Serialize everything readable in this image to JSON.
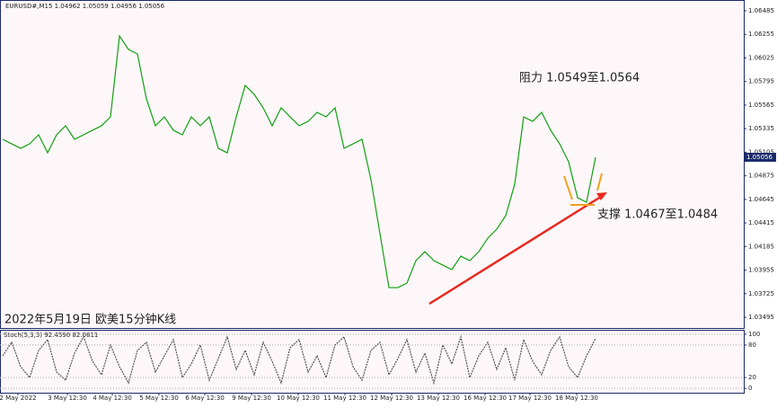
{
  "chart_data": [
    {
      "type": "line",
      "title": "EURUSD#,M15 1.04962 1.05059 1.04956 1.05056",
      "annotations": [
        "阻力 1.0549至1.0564",
        "支撑 1.0467至1.0484",
        "2022年5月19日 欧美15分钟K线"
      ],
      "color": "#10a010",
      "values": [
        1.05231,
        1.05187,
        1.05143,
        1.05187,
        1.05275,
        1.05099,
        1.05275,
        1.05363,
        1.05231,
        1.05275,
        1.05319,
        1.05363,
        1.0545,
        1.06239,
        1.06108,
        1.06064,
        1.05626,
        1.05363,
        1.0545,
        1.05319,
        1.05275,
        1.0545,
        1.05363,
        1.0545,
        1.05143,
        1.05099,
        1.0545,
        1.05757,
        1.05669,
        1.05538,
        1.05363,
        1.05538,
        1.0545,
        1.05363,
        1.05406,
        1.05494,
        1.0545,
        1.05538,
        1.05143,
        1.05187,
        1.05231,
        1.04836,
        1.0431,
        1.03784,
        1.03784,
        1.03828,
        1.04047,
        1.04135,
        1.04047,
        1.04003,
        1.0396,
        1.04091,
        1.04047,
        1.04135,
        1.04266,
        1.04354,
        1.04486,
        1.04793,
        1.0545,
        1.05406,
        1.05494,
        1.05319,
        1.05187,
        1.05012,
        1.04661,
        1.04617,
        1.05056
      ],
      "last_value": 1.05056,
      "ylim": [
        1.0339,
        1.0659
      ],
      "yticks": [
        1.06485,
        1.06255,
        1.06025,
        1.05795,
        1.05565,
        1.05335,
        1.05105,
        1.04875,
        1.04645,
        1.04415,
        1.04185,
        1.03955,
        1.03725,
        1.03495
      ],
      "xlim": [
        -0.3,
        82.5
      ],
      "xticks": [
        {
          "value": 1.7,
          "label": "2 May 2022"
        },
        {
          "value": 7.2,
          "label": "3 May 12:30"
        },
        {
          "value": 12.2,
          "label": "4 May 12:30"
        },
        {
          "value": 17.4,
          "label": "5 May 12:30"
        },
        {
          "value": 22.5,
          "label": "6 May 12:30"
        },
        {
          "value": 27.7,
          "label": "9 May 12:30"
        },
        {
          "value": 32.9,
          "label": "10 May 12:30"
        },
        {
          "value": 38.1,
          "label": "11 May 12:30"
        },
        {
          "value": 43.3,
          "label": "12 May 12:30"
        },
        {
          "value": 48.5,
          "label": "13 May 12:30"
        },
        {
          "value": 53.7,
          "label": "16 May 12:30"
        },
        {
          "value": 58.7,
          "label": "17 May 12:30"
        },
        {
          "value": 63.9,
          "label": "18 May 12:30"
        }
      ],
      "grid": false
    },
    {
      "type": "line",
      "title": "Stoch(5,3,3) 92.4590 82.0811",
      "color": "#555555",
      "values": [
        60,
        85,
        40,
        20,
        70,
        90,
        30,
        15,
        65,
        95,
        50,
        25,
        80,
        40,
        10,
        70,
        85,
        30,
        60,
        90,
        20,
        45,
        80,
        15,
        55,
        95,
        35,
        70,
        25,
        85,
        50,
        10,
        75,
        90,
        30,
        60,
        20,
        80,
        95,
        40,
        15,
        70,
        85,
        25,
        55,
        90,
        30,
        65,
        10,
        80,
        45,
        95,
        20,
        60,
        85,
        35,
        75,
        15,
        90,
        50,
        25,
        70,
        95,
        40,
        20,
        60,
        92
      ],
      "ylim": [
        -8,
        108
      ],
      "yticks": [
        100,
        80,
        20,
        0
      ],
      "grid": true
    }
  ]
}
